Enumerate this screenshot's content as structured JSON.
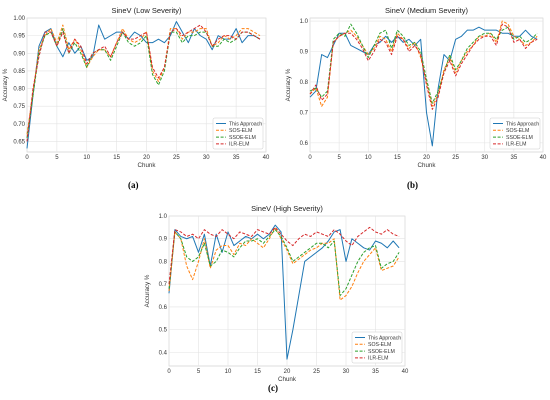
{
  "series_colors": {
    "This Approach": "#1f77b4",
    "SOS-ELM": "#ff7f0e",
    "SSOE-ELM": "#2ca02c",
    "ILR-ELM": "#d62728"
  },
  "chart_data": [
    {
      "type": "line",
      "caption": "(a)",
      "title": "SineV (Low Severity)",
      "xlabel": "Chunk",
      "ylabel": "Accuracy %",
      "xlim": [
        0,
        40
      ],
      "ylim": [
        0.62,
        1.0
      ],
      "xticks": [
        0,
        5,
        10,
        15,
        20,
        25,
        30,
        35,
        40
      ],
      "yticks": [
        0.65,
        0.7,
        0.75,
        0.8,
        0.85,
        0.9,
        0.95,
        1.0
      ],
      "ytick_labels": [
        "0.65",
        "0.70",
        "0.75",
        "0.80",
        "0.85",
        "0.90",
        "0.95",
        "1.00"
      ],
      "grid": true,
      "legend_position": "bottom-right",
      "x": [
        0,
        1,
        2,
        3,
        4,
        5,
        6,
        7,
        8,
        9,
        10,
        11,
        12,
        13,
        14,
        15,
        16,
        17,
        18,
        19,
        20,
        21,
        22,
        23,
        24,
        25,
        26,
        27,
        28,
        29,
        30,
        31,
        32,
        33,
        34,
        35,
        36,
        37,
        38,
        39
      ],
      "series": [
        {
          "name": "This Approach",
          "values": [
            0.63,
            0.78,
            0.92,
            0.96,
            0.97,
            0.92,
            0.89,
            0.93,
            0.9,
            0.92,
            0.88,
            0.89,
            0.98,
            0.94,
            0.95,
            0.96,
            0.96,
            0.94,
            0.96,
            0.95,
            0.93,
            0.93,
            0.94,
            0.93,
            0.95,
            0.99,
            0.96,
            0.93,
            0.97,
            0.95,
            0.94,
            0.91,
            0.95,
            0.94,
            0.94,
            0.97,
            0.93,
            0.95,
            0.95,
            0.94
          ]
        },
        {
          "name": "SOS-ELM",
          "values": [
            0.67,
            0.79,
            0.91,
            0.95,
            0.97,
            0.93,
            0.98,
            0.91,
            0.94,
            0.91,
            0.86,
            0.89,
            0.91,
            0.91,
            0.89,
            0.93,
            0.97,
            0.94,
            0.93,
            0.94,
            0.96,
            0.85,
            0.82,
            0.86,
            0.97,
            0.97,
            0.94,
            0.96,
            0.96,
            0.97,
            0.97,
            0.92,
            0.93,
            0.95,
            0.94,
            0.95,
            0.97,
            0.97,
            0.96,
            0.95
          ]
        },
        {
          "name": "SSOE-ELM",
          "values": [
            0.66,
            0.78,
            0.9,
            0.95,
            0.96,
            0.92,
            0.97,
            0.9,
            0.93,
            0.9,
            0.86,
            0.9,
            0.91,
            0.91,
            0.88,
            0.92,
            0.96,
            0.93,
            0.92,
            0.93,
            0.95,
            0.84,
            0.81,
            0.85,
            0.96,
            0.96,
            0.93,
            0.95,
            0.95,
            0.96,
            0.96,
            0.92,
            0.92,
            0.94,
            0.93,
            0.94,
            0.96,
            0.96,
            0.95,
            0.94
          ]
        },
        {
          "name": "ILR-ELM",
          "values": [
            0.65,
            0.8,
            0.89,
            0.96,
            0.96,
            0.92,
            0.96,
            0.9,
            0.94,
            0.92,
            0.87,
            0.9,
            0.91,
            0.92,
            0.89,
            0.93,
            0.96,
            0.94,
            0.94,
            0.95,
            0.96,
            0.86,
            0.83,
            0.86,
            0.96,
            0.97,
            0.95,
            0.96,
            0.97,
            0.98,
            0.96,
            0.92,
            0.94,
            0.95,
            0.95,
            0.94,
            0.96,
            0.96,
            0.95,
            0.94
          ]
        }
      ]
    },
    {
      "type": "line",
      "caption": "(b)",
      "title": "SineV (Medium Severity)",
      "xlabel": "Chunk",
      "ylabel": "Accuracy %",
      "xlim": [
        0,
        40
      ],
      "ylim": [
        0.57,
        1.01
      ],
      "xticks": [
        0,
        5,
        10,
        15,
        20,
        25,
        30,
        35,
        40
      ],
      "yticks": [
        0.6,
        0.7,
        0.8,
        0.9,
        1.0
      ],
      "ytick_labels": [
        "0.6",
        "0.7",
        "0.8",
        "0.9",
        "1.0"
      ],
      "grid": true,
      "legend_position": "bottom-right",
      "x": [
        0,
        1,
        2,
        3,
        4,
        5,
        6,
        7,
        8,
        9,
        10,
        11,
        12,
        13,
        14,
        15,
        16,
        17,
        18,
        19,
        20,
        21,
        22,
        23,
        24,
        25,
        26,
        27,
        28,
        29,
        30,
        31,
        32,
        33,
        34,
        35,
        36,
        37,
        38,
        39
      ],
      "series": [
        {
          "name": "This Approach",
          "values": [
            0.75,
            0.77,
            0.89,
            0.88,
            0.92,
            0.96,
            0.96,
            0.92,
            0.91,
            0.9,
            0.89,
            0.92,
            0.93,
            0.95,
            0.93,
            0.95,
            0.93,
            0.94,
            0.92,
            0.94,
            0.7,
            0.59,
            0.78,
            0.89,
            0.87,
            0.94,
            0.95,
            0.97,
            0.97,
            0.98,
            0.97,
            0.97,
            0.97,
            0.96,
            0.96,
            0.95,
            0.95,
            0.97,
            0.95,
            0.94
          ]
        },
        {
          "name": "SOS-ELM",
          "values": [
            0.76,
            0.78,
            0.72,
            0.75,
            0.93,
            0.95,
            0.96,
            0.97,
            0.95,
            0.92,
            0.89,
            0.91,
            0.95,
            0.94,
            0.9,
            0.96,
            0.94,
            0.91,
            0.93,
            0.88,
            0.8,
            0.72,
            0.76,
            0.84,
            0.88,
            0.83,
            0.87,
            0.9,
            0.92,
            0.95,
            0.95,
            0.96,
            0.93,
            1.0,
            0.99,
            0.95,
            0.94,
            0.92,
            0.93,
            0.95
          ]
        },
        {
          "name": "SSOE-ELM",
          "values": [
            0.77,
            0.78,
            0.75,
            0.77,
            0.94,
            0.96,
            0.95,
            0.99,
            0.96,
            0.92,
            0.88,
            0.92,
            0.96,
            0.97,
            0.91,
            0.97,
            0.95,
            0.92,
            0.93,
            0.9,
            0.81,
            0.73,
            0.77,
            0.83,
            0.89,
            0.84,
            0.87,
            0.91,
            0.93,
            0.95,
            0.96,
            0.96,
            0.94,
            0.97,
            0.98,
            0.94,
            0.95,
            0.93,
            0.94,
            0.96
          ]
        },
        {
          "name": "ILR-ELM",
          "values": [
            0.76,
            0.79,
            0.74,
            0.76,
            0.93,
            0.95,
            0.96,
            0.96,
            0.94,
            0.91,
            0.87,
            0.9,
            0.94,
            0.93,
            0.89,
            0.95,
            0.94,
            0.9,
            0.92,
            0.89,
            0.79,
            0.71,
            0.75,
            0.83,
            0.87,
            0.82,
            0.86,
            0.89,
            0.92,
            0.94,
            0.95,
            0.95,
            0.92,
            0.99,
            0.98,
            0.93,
            0.94,
            0.91,
            0.93,
            0.94
          ]
        }
      ]
    },
    {
      "type": "line",
      "caption": "(c)",
      "title": "SineV (High Severity)",
      "xlabel": "Chunk",
      "ylabel": "Accuracy %",
      "xlim": [
        0,
        40
      ],
      "ylim": [
        0.34,
        1.0
      ],
      "xticks": [
        0,
        5,
        10,
        15,
        20,
        25,
        30,
        35,
        40
      ],
      "yticks": [
        0.4,
        0.5,
        0.6,
        0.7,
        0.8,
        0.9,
        1.0
      ],
      "ytick_labels": [
        "0.4",
        "0.5",
        "0.6",
        "0.7",
        "0.8",
        "0.9",
        "1.0"
      ],
      "grid": true,
      "legend_position": "bottom-right",
      "x": [
        0,
        1,
        2,
        3,
        4,
        5,
        6,
        7,
        8,
        9,
        10,
        11,
        12,
        13,
        14,
        15,
        16,
        17,
        18,
        19,
        20,
        21,
        22,
        23,
        24,
        25,
        26,
        27,
        28,
        29,
        30,
        31,
        32,
        33,
        34,
        35,
        36,
        37,
        38,
        39
      ],
      "series": [
        {
          "name": "This Approach",
          "values": [
            0.66,
            0.94,
            0.91,
            0.9,
            0.91,
            0.84,
            0.92,
            0.78,
            0.92,
            0.84,
            0.93,
            0.87,
            0.89,
            0.91,
            0.9,
            0.92,
            0.9,
            0.92,
            0.96,
            0.93,
            0.37,
            0.5,
            0.65,
            0.8,
            0.82,
            0.84,
            0.86,
            0.89,
            0.93,
            0.94,
            0.8,
            0.9,
            0.88,
            0.86,
            0.85,
            0.89,
            0.88,
            0.86,
            0.89,
            0.86
          ]
        },
        {
          "name": "SOS-ELM",
          "values": [
            0.67,
            0.93,
            0.9,
            0.78,
            0.72,
            0.8,
            0.9,
            0.77,
            0.85,
            0.87,
            0.87,
            0.83,
            0.88,
            0.87,
            0.9,
            0.88,
            0.86,
            0.9,
            0.95,
            0.9,
            0.85,
            0.79,
            0.81,
            0.83,
            0.85,
            0.86,
            0.88,
            0.88,
            0.9,
            0.63,
            0.65,
            0.69,
            0.75,
            0.8,
            0.83,
            0.86,
            0.76,
            0.77,
            0.78,
            0.82
          ]
        },
        {
          "name": "SSOE-ELM",
          "values": [
            0.68,
            0.93,
            0.9,
            0.82,
            0.8,
            0.82,
            0.88,
            0.78,
            0.8,
            0.85,
            0.84,
            0.82,
            0.86,
            0.89,
            0.89,
            0.9,
            0.88,
            0.91,
            0.94,
            0.91,
            0.86,
            0.8,
            0.82,
            0.84,
            0.86,
            0.88,
            0.88,
            0.86,
            0.89,
            0.65,
            0.68,
            0.74,
            0.8,
            0.84,
            0.86,
            0.87,
            0.77,
            0.79,
            0.8,
            0.84
          ]
        },
        {
          "name": "ILR-ELM",
          "values": [
            0.7,
            0.94,
            0.93,
            0.91,
            0.92,
            0.9,
            0.94,
            0.92,
            0.91,
            0.94,
            0.92,
            0.9,
            0.93,
            0.92,
            0.91,
            0.94,
            0.93,
            0.92,
            0.95,
            0.92,
            0.89,
            0.87,
            0.9,
            0.92,
            0.91,
            0.93,
            0.92,
            0.91,
            0.94,
            0.92,
            0.89,
            0.87,
            0.91,
            0.93,
            0.95,
            0.93,
            0.92,
            0.94,
            0.92,
            0.91
          ]
        }
      ]
    }
  ]
}
